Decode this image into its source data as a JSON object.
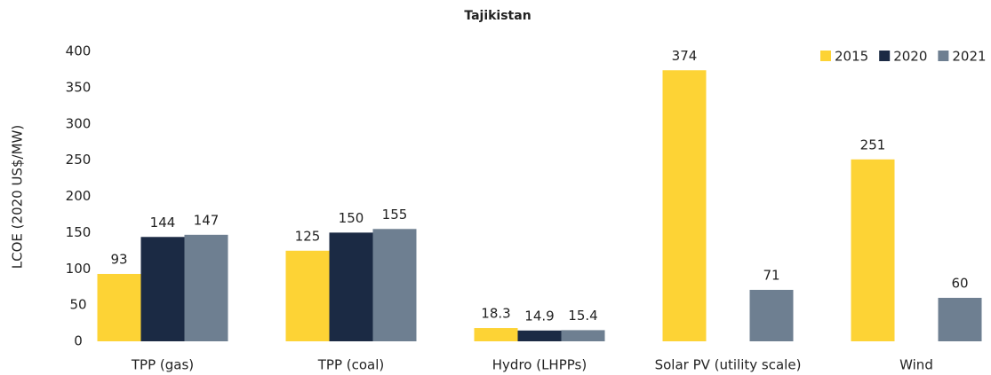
{
  "chart_data": {
    "type": "bar",
    "title": "Tajikistan",
    "y_label": "LCOE (2020 US$/MW)",
    "categories": [
      "TPP (gas)",
      "TPP (coal)",
      "Hydro (LHPPs)",
      "Solar PV (utility scale)",
      "Wind"
    ],
    "series": [
      {
        "name": "2015",
        "color": "#fdd335",
        "values": [
          93,
          125,
          18.3,
          374,
          251
        ]
      },
      {
        "name": "2020",
        "color": "#1b2a44",
        "values": [
          144,
          150,
          14.9,
          null,
          null
        ]
      },
      {
        "name": "2021",
        "color": "#6e7f91",
        "values": [
          147,
          155,
          15.4,
          71,
          60
        ]
      }
    ],
    "ylim": [
      0,
      400
    ],
    "yticks": [
      0,
      50,
      100,
      150,
      200,
      250,
      300,
      350,
      400
    ],
    "grid": false,
    "legend": "top-right"
  }
}
